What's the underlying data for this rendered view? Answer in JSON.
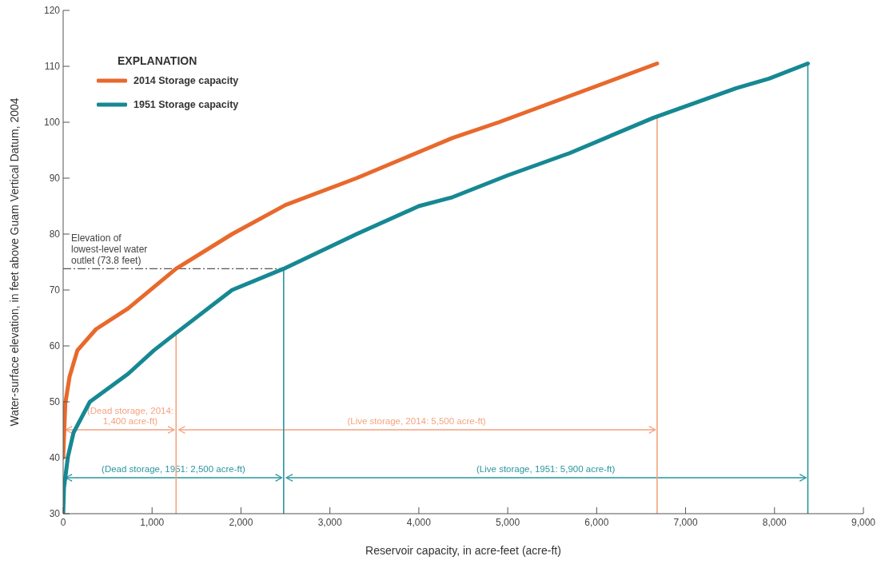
{
  "chart_data": {
    "type": "line",
    "xlabel": "Reservoir capacity, in acre-feet (acre-ft)",
    "ylabel": "Water-surface elevation, in feet above Guam Vertical Datum, 2004",
    "legend_title": "EXPLANATION",
    "legend": "top left",
    "grid": false,
    "marker": "none",
    "line_style": "solid",
    "xlim": [
      0,
      9000
    ],
    "xticks": [
      0,
      {
        "value": 1000,
        "label": "1,000"
      },
      {
        "value": 2000,
        "label": "2,000"
      },
      {
        "value": 3000,
        "label": "3,000"
      },
      {
        "value": 4000,
        "label": "4,000"
      },
      {
        "value": 5000,
        "label": "5,000"
      },
      {
        "value": 6000,
        "label": "6,000"
      },
      {
        "value": 7000,
        "label": "7,000"
      },
      {
        "value": 8000,
        "label": "8,000"
      },
      {
        "value": 9000,
        "label": "9,000"
      }
    ],
    "ylim": [
      30,
      120
    ],
    "yticks": [
      30,
      40,
      50,
      60,
      70,
      80,
      90,
      100,
      110,
      120
    ],
    "series": [
      {
        "name": "2014 Storage capacity",
        "color": "#e8692c",
        "x": [
          0,
          24,
          72,
          160,
          370,
          730,
          1270,
          1900,
          2500,
          3300,
          4050,
          4380,
          4900,
          5750,
          6680
        ],
        "values": [
          40,
          49.7,
          54.5,
          59.2,
          63,
          66.7,
          73.8,
          80,
          85.2,
          90,
          95,
          97.2,
          100,
          105,
          110.5
        ]
      },
      {
        "name": "1951 Storage capacity",
        "color": "#168893",
        "x": [
          0,
          9,
          54,
          117,
          300,
          730,
          1020,
          1270,
          1900,
          2480,
          3300,
          4000,
          4380,
          5000,
          5700,
          6640,
          7570,
          7940,
          8375
        ],
        "values": [
          30,
          34.6,
          40.2,
          44.5,
          50,
          55,
          59.2,
          62.3,
          70,
          73.8,
          80,
          85,
          86.6,
          90.5,
          94.5,
          100.8,
          106.1,
          107.8,
          110.5
        ]
      }
    ],
    "ref_lines": [
      {
        "axis": "y",
        "value": 73.8,
        "label": "Elevation of lowest-level water outlet (73.8 feet)",
        "color": "#555555",
        "line_style": "dashed"
      },
      {
        "axis": "x",
        "value": 1270,
        "color": "#f4a37f"
      },
      {
        "axis": "x",
        "value": 6680,
        "color": "#f4a37f"
      },
      {
        "axis": "x",
        "value": 2480,
        "color": "#2a95a0"
      },
      {
        "axis": "x",
        "value": 8375,
        "color": "#2a95a0"
      }
    ],
    "annotations": [
      "(Dead storage, 2014: 1,400 acre-ft)",
      "(Live storage, 2014: 5,500 acre-ft)",
      "(Dead storage, 1951: 2,500 acre-ft)",
      "(Live storage, 1951: 5,900 acre-ft)"
    ]
  }
}
